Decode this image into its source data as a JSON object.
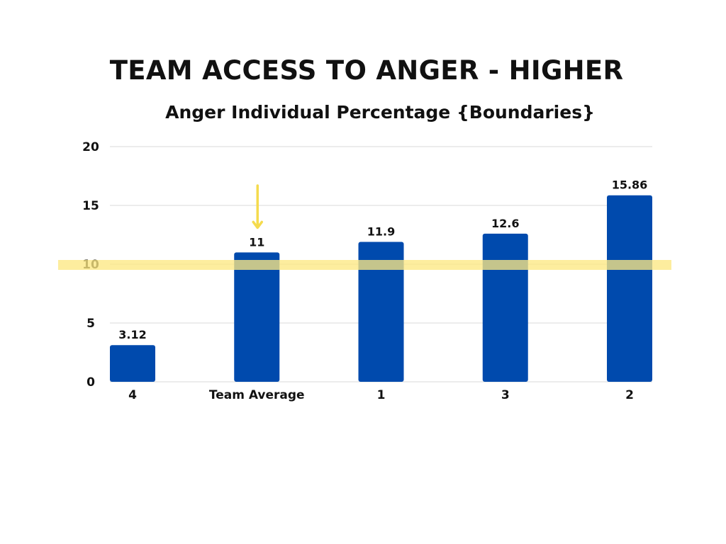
{
  "title": "TEAM ACCESS TO ANGER - HIGHER",
  "subtitle": "Anger Individual Percentage {Boundaries}",
  "colors": {
    "bar": "#004AAD",
    "highlight": "#FCE883",
    "arrow": "#F5DB4E",
    "grid": "#D9D9D9",
    "text": "#111111"
  },
  "chart_data": {
    "type": "bar",
    "categories": [
      "4",
      "Team Average",
      "1",
      "3",
      "2"
    ],
    "values": [
      3.12,
      11,
      11.9,
      12.6,
      15.86
    ],
    "value_labels": [
      "3.12",
      "11",
      "11.9",
      "12.6",
      "15.86"
    ],
    "y_ticks": [
      "0",
      "5",
      "10",
      "15",
      "20"
    ],
    "ylim": [
      0,
      20
    ],
    "grid": true,
    "reference_line": 10,
    "arrow_category": "Team Average",
    "xlabel": "",
    "ylabel": ""
  }
}
